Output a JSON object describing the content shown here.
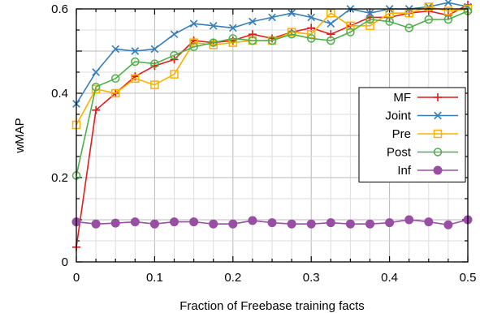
{
  "chart_data": {
    "type": "line",
    "xlabel": "Fraction of Freebase training facts",
    "ylabel": "wMAP",
    "xlim": [
      0,
      0.5
    ],
    "ylim": [
      0,
      0.6
    ],
    "x_ticks": [
      0,
      0.1,
      0.2,
      0.3,
      0.4,
      0.5
    ],
    "x_tick_labels": [
      "0",
      "0.1",
      "0.2",
      "0.3",
      "0.4",
      "0.5"
    ],
    "y_ticks": [
      0,
      0.2,
      0.4,
      0.6
    ],
    "y_tick_labels": [
      "0",
      "0.2",
      "0.4",
      "0.6"
    ],
    "grid": true,
    "legend_position": "right",
    "x": [
      0,
      0.025,
      0.05,
      0.075,
      0.1,
      0.125,
      0.15,
      0.175,
      0.2,
      0.225,
      0.25,
      0.275,
      0.3,
      0.325,
      0.35,
      0.375,
      0.4,
      0.425,
      0.45,
      0.475,
      0.5
    ],
    "series": [
      {
        "name": "MF",
        "color": "#e41a1c",
        "marker": "plus",
        "values": [
          0.035,
          0.36,
          0.4,
          0.44,
          0.465,
          0.48,
          0.525,
          0.52,
          0.525,
          0.54,
          0.53,
          0.545,
          0.555,
          0.54,
          0.56,
          0.58,
          0.58,
          0.59,
          0.595,
          0.585,
          0.61
        ]
      },
      {
        "name": "Joint",
        "color": "#377eb8",
        "marker": "x",
        "values": [
          0.375,
          0.45,
          0.505,
          0.5,
          0.505,
          0.54,
          0.565,
          0.56,
          0.555,
          0.57,
          0.58,
          0.59,
          0.58,
          0.565,
          0.6,
          0.59,
          0.6,
          0.6,
          0.605,
          0.615,
          0.605
        ]
      },
      {
        "name": "Pre",
        "color": "#ffb000",
        "marker": "square",
        "values": [
          0.325,
          0.41,
          0.4,
          0.435,
          0.42,
          0.445,
          0.52,
          0.515,
          0.52,
          0.525,
          0.525,
          0.545,
          0.54,
          0.59,
          0.56,
          0.56,
          0.59,
          0.59,
          0.605,
          0.595,
          0.6
        ]
      },
      {
        "name": "Post",
        "color": "#4daf4a",
        "marker": "circle",
        "values": [
          0.205,
          0.415,
          0.435,
          0.475,
          0.47,
          0.49,
          0.51,
          0.52,
          0.53,
          0.525,
          0.525,
          0.54,
          0.53,
          0.525,
          0.545,
          0.575,
          0.57,
          0.555,
          0.575,
          0.575,
          0.595
        ]
      },
      {
        "name": "Inf",
        "color": "#984ea3",
        "marker": "filled-circle",
        "values": [
          0.095,
          0.09,
          0.092,
          0.095,
          0.09,
          0.095,
          0.095,
          0.09,
          0.09,
          0.098,
          0.093,
          0.09,
          0.09,
          0.093,
          0.09,
          0.09,
          0.093,
          0.1,
          0.095,
          0.088,
          0.1
        ]
      }
    ]
  }
}
